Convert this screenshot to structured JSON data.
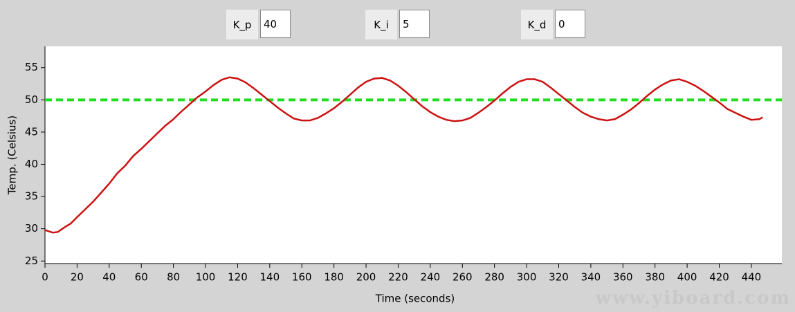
{
  "controls": [
    {
      "label": "K_p",
      "value": 40
    },
    {
      "label": "K_i",
      "value": 5
    },
    {
      "label": "K_d",
      "value": 0
    }
  ],
  "watermark": "www.yiboard.com",
  "chart_data": {
    "type": "line",
    "xlabel": "Time (seconds)",
    "ylabel": "Temp. (Celsius)",
    "xlim": [
      0,
      459
    ],
    "ylim": [
      24.6,
      58.3
    ],
    "xticks": [
      0,
      20,
      40,
      60,
      80,
      100,
      120,
      140,
      160,
      180,
      200,
      220,
      240,
      260,
      280,
      300,
      320,
      340,
      360,
      380,
      400,
      420,
      440
    ],
    "yticks": [
      25,
      30,
      35,
      40,
      45,
      50,
      55
    ],
    "reference_line": {
      "value": 50,
      "color": "#22dd22"
    },
    "x": [
      0,
      5,
      8,
      12,
      16,
      20,
      25,
      30,
      35,
      40,
      45,
      50,
      55,
      60,
      65,
      70,
      75,
      80,
      85,
      90,
      95,
      100,
      105,
      110,
      115,
      120,
      125,
      130,
      135,
      140,
      145,
      150,
      155,
      160,
      165,
      170,
      175,
      180,
      185,
      190,
      195,
      200,
      205,
      210,
      215,
      220,
      225,
      230,
      235,
      240,
      245,
      250,
      255,
      260,
      265,
      270,
      275,
      280,
      285,
      290,
      295,
      300,
      305,
      310,
      315,
      320,
      325,
      330,
      335,
      340,
      345,
      350,
      355,
      360,
      365,
      370,
      375,
      380,
      385,
      390,
      395,
      400,
      405,
      410,
      415,
      420,
      425,
      430,
      435,
      440,
      445,
      447
    ],
    "series": [
      {
        "color": "#cc1111",
        "values": [
          29.8,
          29.4,
          29.5,
          30.2,
          30.8,
          31.8,
          33.0,
          34.2,
          35.6,
          37,
          38.6,
          39.8,
          41.3,
          42.4,
          43.6,
          44.8,
          46,
          47,
          48.2,
          49.3,
          50.4,
          51.3,
          52.3,
          53.1,
          53.5,
          53.3,
          52.7,
          51.8,
          50.8,
          49.8,
          48.8,
          47.9,
          47.1,
          46.8,
          46.8,
          47.2,
          47.9,
          48.7,
          49.7,
          50.8,
          51.9,
          52.8,
          53.3,
          53.4,
          53.0,
          52.2,
          51.2,
          50.1,
          49.0,
          48.1,
          47.4,
          46.9,
          46.7,
          46.8,
          47.2,
          48.0,
          48.9,
          49.9,
          51.0,
          52.0,
          52.8,
          53.2,
          53.2,
          52.8,
          51.9,
          50.9,
          49.9,
          48.9,
          48.0,
          47.4,
          47.0,
          46.8,
          47.0,
          47.7,
          48.5,
          49.5,
          50.6,
          51.6,
          52.4,
          53.0,
          53.2,
          52.8,
          52.2,
          51.4,
          50.5,
          49.6,
          48.6,
          48.0,
          47.4,
          46.9,
          47.0,
          47.3
        ]
      }
    ]
  }
}
